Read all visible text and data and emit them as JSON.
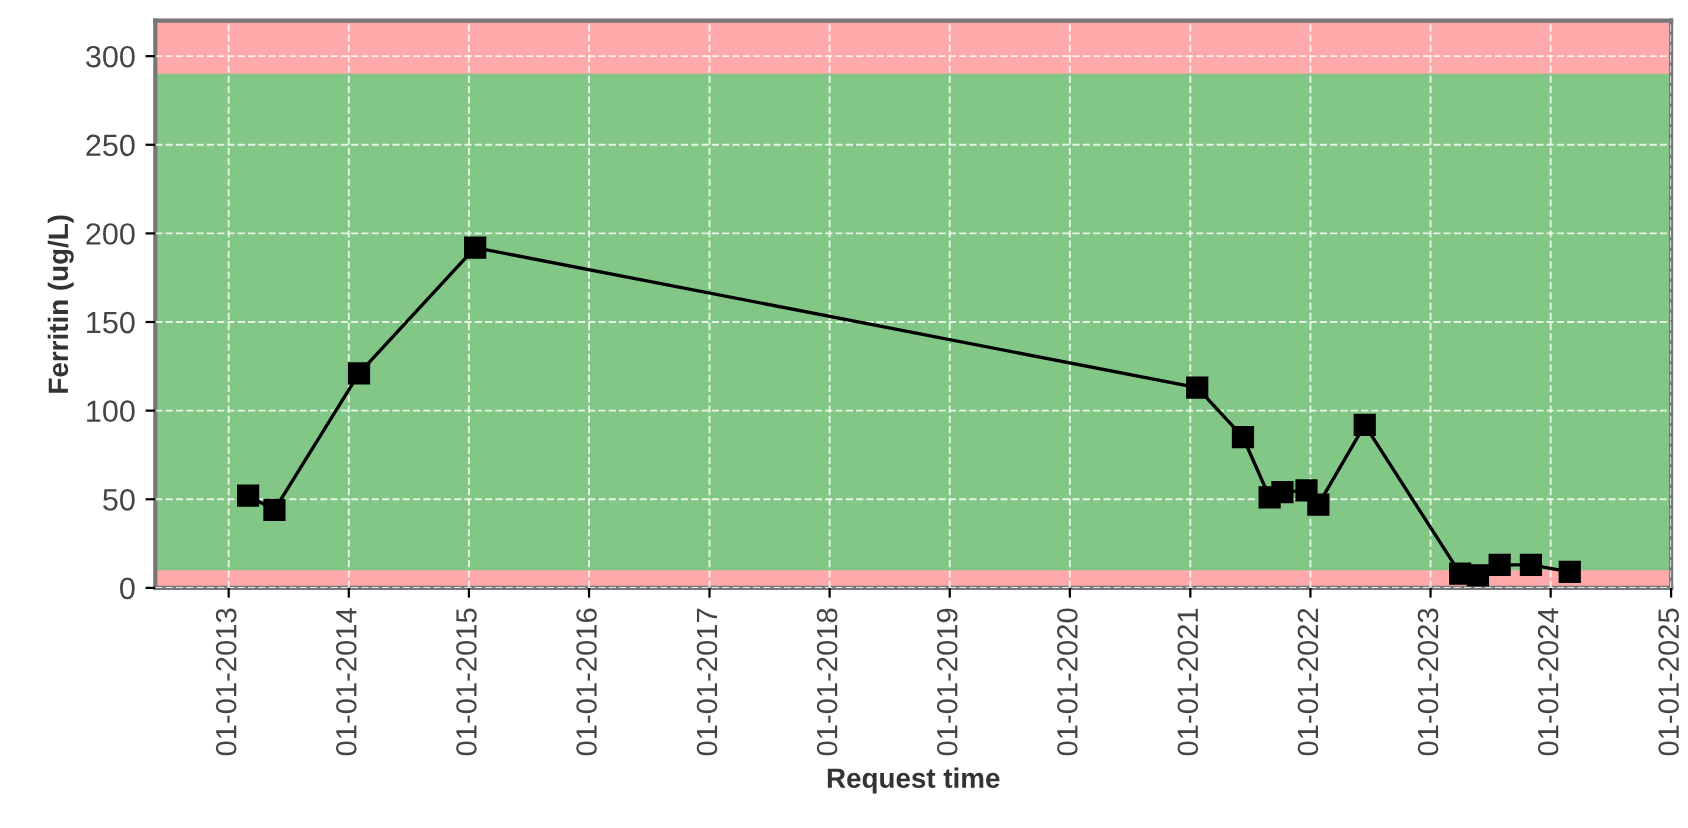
{
  "chart_data": {
    "type": "line",
    "xlabel": "Request time",
    "ylabel": "Ferritin (ug/L)",
    "x": [
      "2013-03-01",
      "2013-05-20",
      "2014-02-01",
      "2015-01-20",
      "2021-01-22",
      "2021-06-10",
      "2021-08-30",
      "2021-10-08",
      "2021-12-20",
      "2022-01-25",
      "2022-06-15",
      "2023-04-01",
      "2023-05-25",
      "2023-07-30",
      "2023-11-02",
      "2024-02-28"
    ],
    "series": [
      {
        "color": "#000000",
        "values": [
          52,
          44,
          121,
          192,
          113,
          85,
          51,
          54,
          55,
          47,
          92,
          8,
          7,
          13,
          13,
          9
        ]
      }
    ],
    "marker": "square",
    "line_style": "solid",
    "xlim": [
      "2012-05-23",
      "2025-01-01"
    ],
    "ylim": [
      0,
      320
    ],
    "xticks": [
      {
        "value": "2013-01-01",
        "label": "01-01-2013"
      },
      {
        "value": "2014-01-01",
        "label": "01-01-2014"
      },
      {
        "value": "2015-01-01",
        "label": "01-01-2015"
      },
      {
        "value": "2016-01-01",
        "label": "01-01-2016"
      },
      {
        "value": "2017-01-01",
        "label": "01-01-2017"
      },
      {
        "value": "2018-01-01",
        "label": "01-01-2018"
      },
      {
        "value": "2019-01-01",
        "label": "01-01-2019"
      },
      {
        "value": "2020-01-01",
        "label": "01-01-2020"
      },
      {
        "value": "2021-01-01",
        "label": "01-01-2021"
      },
      {
        "value": "2022-01-01",
        "label": "01-01-2022"
      },
      {
        "value": "2023-01-01",
        "label": "01-01-2023"
      },
      {
        "value": "2024-01-01",
        "label": "01-01-2024"
      },
      {
        "value": "2025-01-01",
        "label": "01-01-2025"
      }
    ],
    "yticks": [
      0,
      50,
      100,
      150,
      200,
      250,
      300
    ],
    "bands": [
      {
        "axis": "y",
        "from": 0,
        "to": 320,
        "color": "#ffaaaa"
      },
      {
        "axis": "y",
        "from": 10,
        "to": 290,
        "color": "#82c785"
      }
    ],
    "grid": true,
    "legend": false
  }
}
